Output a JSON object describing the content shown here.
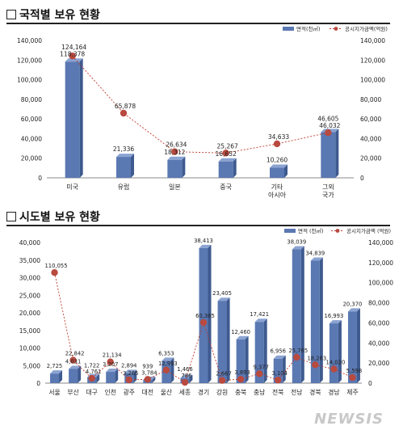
{
  "section1": {
    "title": "국적별 보유 현황"
  },
  "section2": {
    "title": "시도별 보유 현황"
  },
  "watermark": "NEWSIS",
  "chart_data": [
    {
      "type": "bar",
      "title": "국적별 보유 현황",
      "legend": {
        "placement": "top-right",
        "bar_label": "면적(천㎡)",
        "line_label": "공시지가금액(억원)"
      },
      "categories": [
        "미국",
        "유럽",
        "일본",
        "중국",
        "기타\n아시아",
        "그외\n국가"
      ],
      "series": [
        {
          "name": "면적(천㎡)",
          "kind": "bar",
          "axis": "left",
          "values": [
            118378,
            21336,
            18312,
            16652,
            10260,
            46605
          ]
        },
        {
          "name": "공시지가금액(억원)",
          "kind": "line",
          "axis": "right",
          "values": [
            124164,
            65878,
            26634,
            25267,
            34633,
            46032
          ]
        }
      ],
      "bar_labels": [
        "118,378",
        "21,336",
        "18,312",
        "16,652",
        "10,260",
        "46,605"
      ],
      "line_labels": [
        "124,164",
        "65,878",
        "26,634",
        "25,267",
        "34,633",
        "46,032"
      ],
      "ylim": [
        0,
        140000
      ],
      "y2lim": [
        0,
        140000
      ],
      "yticks": [
        "0",
        "20,000",
        "40,000",
        "60,000",
        "80,000",
        "100,000",
        "120,000",
        "140,000"
      ],
      "y2ticks": [
        "0",
        "20,000",
        "40,000",
        "60,000",
        "80,000",
        "100,000",
        "120,000",
        "140,000"
      ],
      "colors": {
        "bar": "#5a78b2",
        "line": "#c0392b",
        "marker": "#b84a3f"
      }
    },
    {
      "type": "bar",
      "title": "시도별 보유 현황",
      "legend": {
        "placement": "top-right",
        "bar_label": "면적 (천㎡)",
        "line_label": "공시지가금액 (억원)"
      },
      "categories": [
        "서울",
        "부산",
        "대구",
        "인천",
        "광주",
        "대전",
        "울산",
        "세종",
        "경기",
        "강원",
        "충북",
        "충남",
        "전북",
        "전남",
        "경북",
        "경남",
        "제주"
      ],
      "series": [
        {
          "name": "면적 (천㎡)",
          "kind": "bar",
          "axis": "left",
          "values": [
            2725,
            4031,
            1722,
            3207,
            2894,
            939,
            6353,
            1466,
            38413,
            23405,
            12460,
            17421,
            6956,
            38039,
            34839,
            16993,
            20370
          ]
        },
        {
          "name": "공시지가금액 (억원)",
          "kind": "line",
          "axis": "right",
          "values": [
            110055,
            22842,
            4761,
            21134,
            3265,
            3784,
            12993,
            786,
            60365,
            2667,
            3893,
            9377,
            3104,
            25765,
            18263,
            14020,
            5598
          ]
        }
      ],
      "bar_labels": [
        "2,725",
        "4,031",
        "1,722",
        "3,207",
        "2,894",
        "939",
        "6,353",
        "1,466",
        "38,413",
        "23,405",
        "12,460",
        "17,421",
        "6,956",
        "38,039",
        "34,839",
        "16,993",
        "20,370"
      ],
      "line_labels": [
        "110,055",
        "22,842",
        "4,761",
        "21,134",
        "3,265",
        "3,784",
        "12,993",
        "786",
        "60,365",
        "2,667",
        "3,893",
        "9,377",
        "3,104",
        "25,765",
        "18,263",
        "14,020",
        "5,598"
      ],
      "ylim": [
        0,
        40000
      ],
      "y2lim": [
        0,
        140000
      ],
      "yticks": [
        "0",
        "5,000",
        "10,000",
        "15,000",
        "20,000",
        "25,000",
        "30,000",
        "35,000",
        "40,000"
      ],
      "y2ticks": [
        "0",
        "20,000",
        "40,000",
        "60,000",
        "80,000",
        "100,000",
        "120,000",
        "140,000"
      ],
      "colors": {
        "bar": "#5a78b2",
        "line": "#c0392b",
        "marker": "#b84a3f"
      }
    }
  ]
}
